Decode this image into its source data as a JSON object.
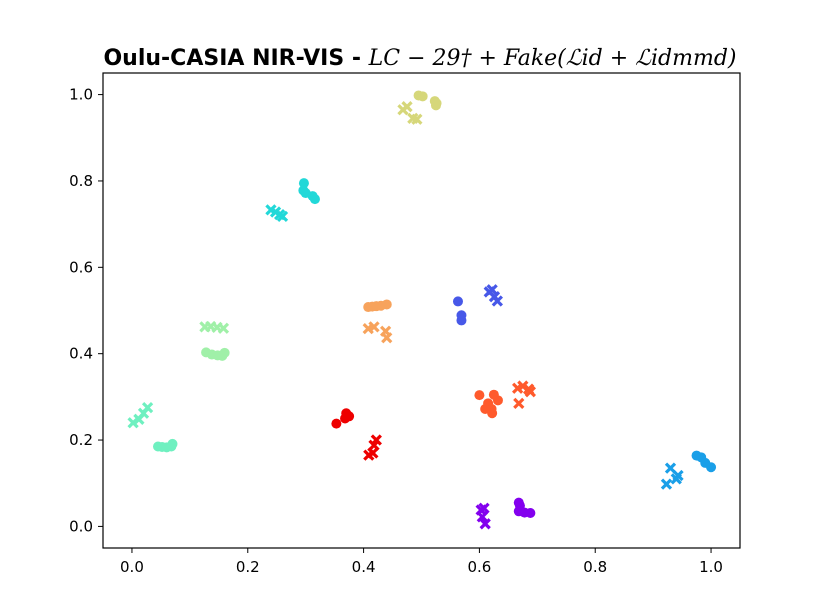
{
  "chart_data": {
    "type": "scatter",
    "title": {
      "bold": "Oulu-CASIA NIR-VIS - ",
      "math": "LC − 29† + Fake(ℒid + ℒidmmd)"
    },
    "xlabel": "",
    "ylabel": "",
    "xlim": [
      -0.05,
      1.05
    ],
    "ylim": [
      -0.05,
      1.05
    ],
    "xticks": [
      0.0,
      0.2,
      0.4,
      0.6,
      0.8,
      1.0
    ],
    "yticks": [
      0.0,
      0.2,
      0.4,
      0.6,
      0.8,
      1.0
    ],
    "xtick_labels": [
      "0.0",
      "0.2",
      "0.4",
      "0.6",
      "0.8",
      "1.0"
    ],
    "ytick_labels": [
      "0.0",
      "0.2",
      "0.4",
      "0.6",
      "0.8",
      "1.0"
    ],
    "grid": false,
    "legend": "none",
    "marker_shapes": {
      "circle": "o",
      "cross": "x"
    },
    "series": [
      {
        "color": "#d6d77a",
        "circle": [
          [
            0.495,
            0.998
          ],
          [
            0.502,
            0.996
          ],
          [
            0.523,
            0.985
          ],
          [
            0.525,
            0.975
          ],
          [
            0.526,
            0.98
          ]
        ],
        "cross": [
          [
            0.468,
            0.965
          ],
          [
            0.475,
            0.972
          ],
          [
            0.485,
            0.945
          ],
          [
            0.492,
            0.943
          ]
        ]
      },
      {
        "color": "#22d8d8",
        "circle": [
          [
            0.297,
            0.795
          ],
          [
            0.296,
            0.778
          ],
          [
            0.3,
            0.772
          ],
          [
            0.312,
            0.765
          ],
          [
            0.316,
            0.758
          ]
        ],
        "cross": [
          [
            0.24,
            0.733
          ],
          [
            0.248,
            0.728
          ],
          [
            0.255,
            0.722
          ],
          [
            0.26,
            0.718
          ]
        ]
      },
      {
        "color": "#f7a35c",
        "circle": [
          [
            0.408,
            0.508
          ],
          [
            0.415,
            0.509
          ],
          [
            0.422,
            0.51
          ],
          [
            0.43,
            0.511
          ],
          [
            0.44,
            0.514
          ]
        ],
        "cross": [
          [
            0.408,
            0.458
          ],
          [
            0.418,
            0.462
          ],
          [
            0.438,
            0.452
          ],
          [
            0.44,
            0.437
          ]
        ]
      },
      {
        "color": "#4758e8",
        "circle": [
          [
            0.563,
            0.521
          ],
          [
            0.569,
            0.489
          ],
          [
            0.569,
            0.477
          ]
        ],
        "cross": [
          [
            0.617,
            0.543
          ],
          [
            0.622,
            0.548
          ],
          [
            0.631,
            0.522
          ],
          [
            0.626,
            0.532
          ]
        ]
      },
      {
        "color": "#a0f0a8",
        "circle": [
          [
            0.128,
            0.403
          ],
          [
            0.138,
            0.398
          ],
          [
            0.148,
            0.396
          ],
          [
            0.156,
            0.395
          ],
          [
            0.16,
            0.402
          ]
        ],
        "cross": [
          [
            0.126,
            0.462
          ],
          [
            0.136,
            0.463
          ],
          [
            0.147,
            0.461
          ],
          [
            0.158,
            0.459
          ]
        ]
      },
      {
        "color": "#ff5a2c",
        "circle": [
          [
            0.6,
            0.304
          ],
          [
            0.615,
            0.285
          ],
          [
            0.621,
            0.272
          ],
          [
            0.625,
            0.305
          ],
          [
            0.632,
            0.292
          ],
          [
            0.61,
            0.272
          ],
          [
            0.622,
            0.262
          ]
        ],
        "cross": [
          [
            0.666,
            0.32
          ],
          [
            0.675,
            0.325
          ],
          [
            0.688,
            0.312
          ],
          [
            0.668,
            0.285
          ],
          [
            0.685,
            0.318
          ]
        ]
      },
      {
        "color": "#6ff0c0",
        "circle": [
          [
            0.045,
            0.185
          ],
          [
            0.052,
            0.184
          ],
          [
            0.06,
            0.183
          ],
          [
            0.068,
            0.185
          ],
          [
            0.07,
            0.191
          ]
        ],
        "cross": [
          [
            0.002,
            0.24
          ],
          [
            0.012,
            0.248
          ],
          [
            0.02,
            0.262
          ],
          [
            0.027,
            0.275
          ]
        ]
      },
      {
        "color": "#ee0000",
        "circle": [
          [
            0.353,
            0.238
          ],
          [
            0.37,
            0.262
          ],
          [
            0.375,
            0.255
          ],
          [
            0.368,
            0.25
          ]
        ],
        "cross": [
          [
            0.409,
            0.165
          ],
          [
            0.416,
            0.17
          ],
          [
            0.418,
            0.188
          ],
          [
            0.422,
            0.2
          ]
        ]
      },
      {
        "color": "#1a9fe8",
        "circle": [
          [
            0.975,
            0.164
          ],
          [
            0.983,
            0.16
          ],
          [
            0.99,
            0.147
          ],
          [
            1.0,
            0.137
          ]
        ],
        "cross": [
          [
            0.923,
            0.098
          ],
          [
            0.93,
            0.135
          ],
          [
            0.943,
            0.118
          ],
          [
            0.94,
            0.11
          ]
        ]
      },
      {
        "color": "#8300ee",
        "circle": [
          [
            0.668,
            0.055
          ],
          [
            0.67,
            0.048
          ],
          [
            0.668,
            0.035
          ],
          [
            0.678,
            0.032
          ],
          [
            0.688,
            0.031
          ]
        ],
        "cross": [
          [
            0.603,
            0.038
          ],
          [
            0.608,
            0.042
          ],
          [
            0.605,
            0.022
          ],
          [
            0.61,
            0.006
          ]
        ]
      }
    ]
  }
}
